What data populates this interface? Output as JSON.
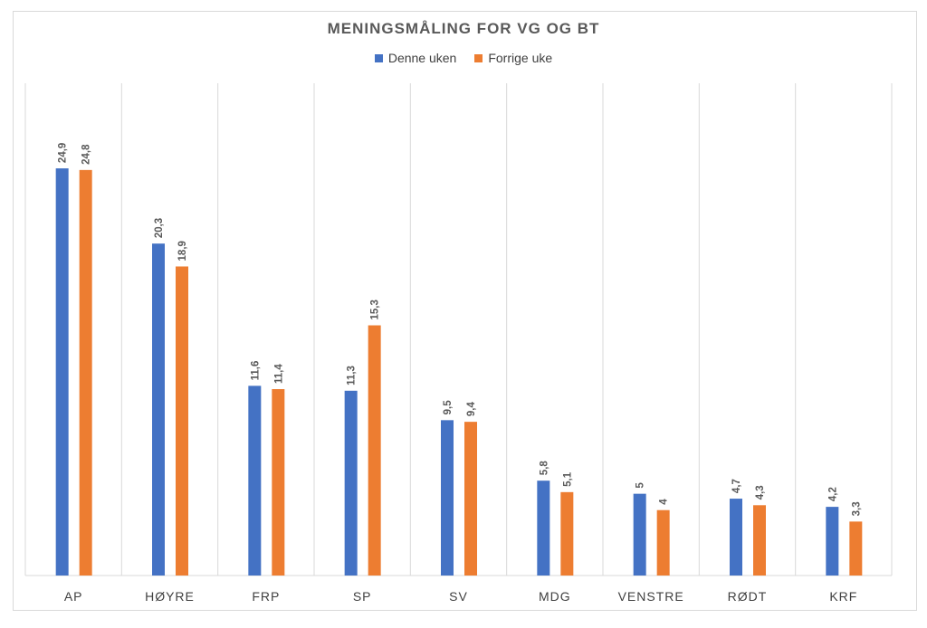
{
  "chart_data": {
    "type": "bar",
    "title": "MENINGSMÅLING FOR VG OG BT",
    "xlabel": "",
    "ylabel": "",
    "categories": [
      "AP",
      "HØYRE",
      "FRP",
      "SP",
      "SV",
      "MDG",
      "VENSTRE",
      "RØDT",
      "KRF"
    ],
    "series": [
      {
        "name": "Denne uken",
        "color": "#4472c4",
        "values": [
          24.9,
          20.3,
          11.6,
          11.3,
          9.5,
          5.8,
          5,
          4.7,
          4.2
        ]
      },
      {
        "name": "Forrige uke",
        "color": "#ed7d31",
        "values": [
          24.8,
          18.9,
          11.4,
          15.3,
          9.4,
          5.1,
          4,
          4.3,
          3.3
        ]
      }
    ],
    "data_labels": [
      [
        "24,9",
        "20,3",
        "11,6",
        "11,3",
        "9,5",
        "5,8",
        "5",
        "4,7",
        "4,2"
      ],
      [
        "24,8",
        "18,9",
        "11,4",
        "15,3",
        "9,4",
        "5,1",
        "4",
        "4,3",
        "3,3"
      ]
    ],
    "ylim": [
      0,
      30
    ],
    "grid": "vertical category separators",
    "legend_position": "top"
  }
}
